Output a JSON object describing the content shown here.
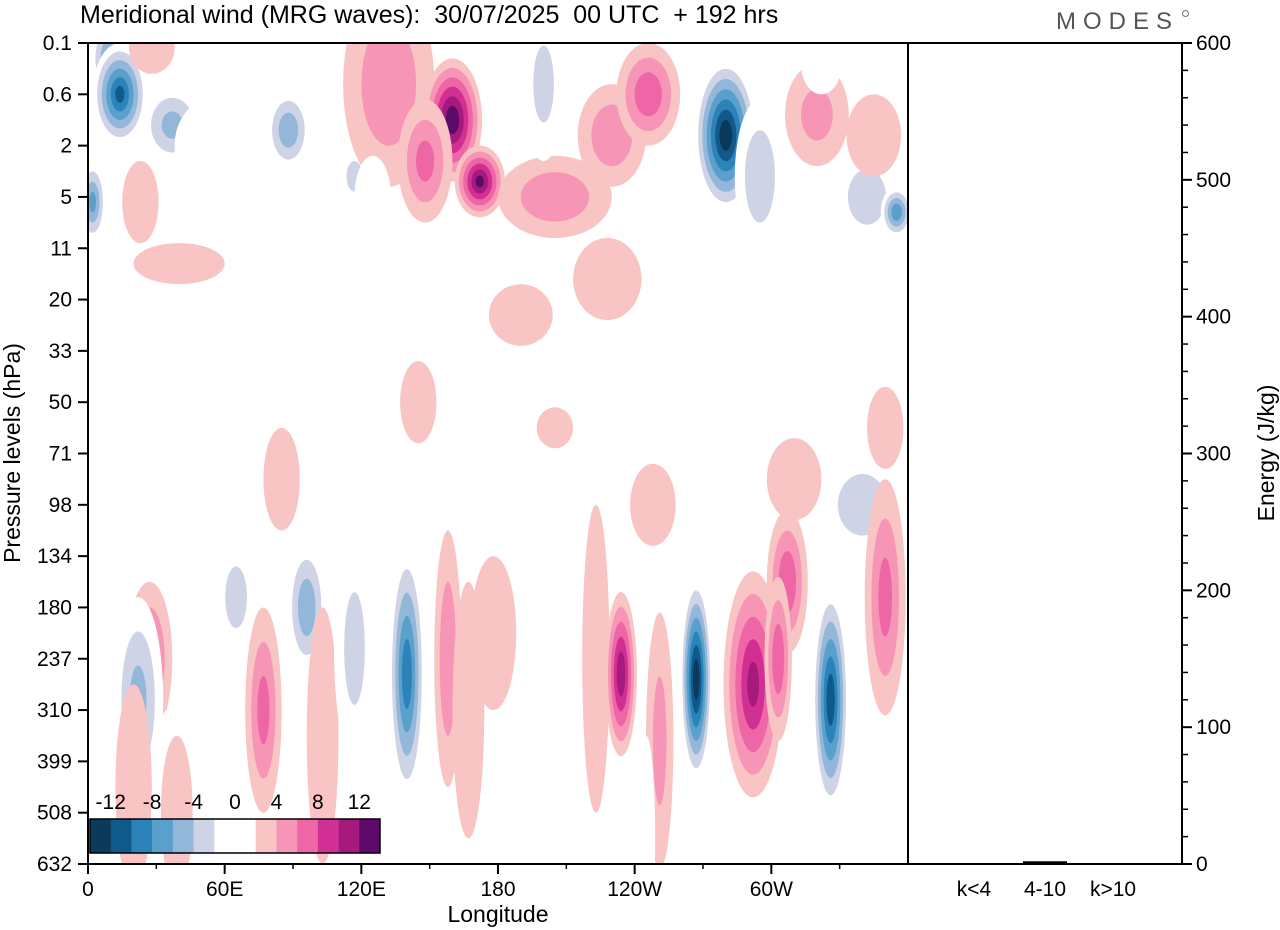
{
  "chart_data": {
    "type": "heatmap",
    "title": "Meridional wind (MRG waves):  30/07/2025  00 UTC  + 192 hrs",
    "brand": "MODES",
    "xlabel": "Longitude",
    "ylabel": "Pressure levels (hPa)",
    "x_ticks": [
      "0",
      "60E",
      "120E",
      "180",
      "120W",
      "60W"
    ],
    "x_tick_degrees": [
      0,
      60,
      120,
      180,
      240,
      300
    ],
    "x_range_degrees": [
      0,
      360
    ],
    "y_ticks": [
      "0.1",
      "0.6",
      "2",
      "5",
      "11",
      "20",
      "33",
      "50",
      "71",
      "98",
      "134",
      "180",
      "237",
      "310",
      "399",
      "508",
      "632"
    ],
    "colorbar": {
      "labels": [
        "-12",
        "-8",
        "-4",
        "0",
        "4",
        "8",
        "12"
      ],
      "levels": [
        -14,
        -12,
        -10,
        -8,
        -6,
        -4,
        -2,
        2,
        4,
        6,
        8,
        10,
        12,
        14
      ],
      "colors": [
        "#0b3a5a",
        "#0f5a8a",
        "#2b83ba",
        "#5aa0cc",
        "#92b7d9",
        "#cfd3e6",
        "#ffffff",
        "#ffffff",
        "#f9c4c4",
        "#f795b6",
        "#ee66a6",
        "#d12f93",
        "#a51a7c",
        "#5e0a6b"
      ]
    },
    "energy_panel": {
      "ylabel": "Energy (J/kg)",
      "ylim": [
        0,
        600
      ],
      "y_ticks": [
        0,
        100,
        200,
        300,
        400,
        500,
        600
      ],
      "categories": [
        "k<4",
        "4-10",
        "k>10"
      ],
      "values": [
        0.5,
        2,
        0.5
      ]
    },
    "blobs": [
      {
        "lon": 10,
        "lev": 0.3,
        "w": 9,
        "h": 0.8,
        "v": -8
      },
      {
        "lon": 14,
        "lev": 1.0,
        "w": 12,
        "h": 1.0,
        "v": -12
      },
      {
        "lon": 37,
        "lev": 1.6,
        "w": 14,
        "h": 0.8,
        "v": -6
      },
      {
        "lon": 54,
        "lev": 2.0,
        "w": 16,
        "h": 0.9,
        "v": -3
      },
      {
        "lon": 88,
        "lev": 1.7,
        "w": 10,
        "h": 0.8,
        "v": -7
      },
      {
        "lon": 2,
        "lev": 3.1,
        "w": 6,
        "h": 0.8,
        "v": -8
      },
      {
        "lon": 117,
        "lev": 2.6,
        "w": 7,
        "h": 0.6,
        "v": -4
      },
      {
        "lon": 28,
        "lev": 0.1,
        "w": 10,
        "h": 0.5,
        "v": 3
      },
      {
        "lon": 132,
        "lev": 0.8,
        "w": 20,
        "h": 2.0,
        "v": 5
      },
      {
        "lon": 160,
        "lev": 1.5,
        "w": 13,
        "h": 1.2,
        "v": 13
      },
      {
        "lon": 172,
        "lev": 2.7,
        "w": 11,
        "h": 0.7,
        "v": 12
      },
      {
        "lon": 148,
        "lev": 2.3,
        "w": 12,
        "h": 1.2,
        "v": 6
      },
      {
        "lon": 205,
        "lev": 3.0,
        "w": 25,
        "h": 0.8,
        "v": 5
      },
      {
        "lon": 230,
        "lev": 1.8,
        "w": 15,
        "h": 1.0,
        "v": 5
      },
      {
        "lon": 246,
        "lev": 1.0,
        "w": 14,
        "h": 1.0,
        "v": 7
      },
      {
        "lon": 200,
        "lev": 0.8,
        "w": 9,
        "h": 1.5,
        "v": -4
      },
      {
        "lon": 280,
        "lev": 1.8,
        "w": 14,
        "h": 1.5,
        "v": -15
      },
      {
        "lon": 295,
        "lev": 2.6,
        "w": 11,
        "h": 1.5,
        "v": -5
      },
      {
        "lon": 342,
        "lev": 3.0,
        "w": 14,
        "h": 0.9,
        "v": -5
      },
      {
        "lon": 355,
        "lev": 3.3,
        "w": 7,
        "h": 0.5,
        "v": -9
      },
      {
        "lon": 320,
        "lev": 1.4,
        "w": 14,
        "h": 1.0,
        "v": 4
      },
      {
        "lon": 345,
        "lev": 1.8,
        "w": 12,
        "h": 0.8,
        "v": 3
      },
      {
        "lon": 322,
        "lev": 0.4,
        "w": 9,
        "h": 0.6,
        "v": -3
      },
      {
        "lon": 125,
        "lev": 3.0,
        "w": 8,
        "h": 0.8,
        "v": -3
      },
      {
        "lon": 95,
        "lev": 4.0,
        "w": 12,
        "h": 0.5,
        "v": -3
      },
      {
        "lon": 40,
        "lev": 4.3,
        "w": 20,
        "h": 0.4,
        "v": 3
      },
      {
        "lon": 23,
        "lev": 3.1,
        "w": 8,
        "h": 0.8,
        "v": 3
      },
      {
        "lon": 228,
        "lev": 4.6,
        "w": 15,
        "h": 0.8,
        "v": 3
      },
      {
        "lon": 190,
        "lev": 5.3,
        "w": 14,
        "h": 0.6,
        "v": 3
      },
      {
        "lon": 20,
        "lev": 7.5,
        "w": 25,
        "h": 1.2,
        "v": -3
      },
      {
        "lon": 48,
        "lev": 9.5,
        "w": 10,
        "h": 1.0,
        "v": -3
      },
      {
        "lon": 65,
        "lev": 10.8,
        "w": 8,
        "h": 1.0,
        "v": -5
      },
      {
        "lon": 85,
        "lev": 8.5,
        "w": 8,
        "h": 1.0,
        "v": 3
      },
      {
        "lon": 110,
        "lev": 8.0,
        "w": 7,
        "h": 0.5,
        "v": -3
      },
      {
        "lon": 145,
        "lev": 7.0,
        "w": 8,
        "h": 0.8,
        "v": 3
      },
      {
        "lon": 205,
        "lev": 7.5,
        "w": 8,
        "h": 0.4,
        "v": 3
      },
      {
        "lon": 250,
        "lev": 7.6,
        "w": 14,
        "h": 0.5,
        "v": -3
      },
      {
        "lon": 248,
        "lev": 9.0,
        "w": 10,
        "h": 0.8,
        "v": 3
      },
      {
        "lon": 310,
        "lev": 8.5,
        "w": 12,
        "h": 0.8,
        "v": 3
      },
      {
        "lon": 340,
        "lev": 9.0,
        "w": 18,
        "h": 1.0,
        "v": -5
      },
      {
        "lon": 350,
        "lev": 7.5,
        "w": 8,
        "h": 0.8,
        "v": 3
      },
      {
        "lon": 307,
        "lev": 10.5,
        "w": 9,
        "h": 1.4,
        "v": 7
      },
      {
        "lon": 27,
        "lev": 12.0,
        "w": 10,
        "h": 1.5,
        "v": 6
      },
      {
        "lon": 22,
        "lev": 12.8,
        "w": 11,
        "h": 2.0,
        "v": -6
      },
      {
        "lon": 35,
        "lev": 14.5,
        "w": 6,
        "h": 1.5,
        "v": -3
      },
      {
        "lon": 39,
        "lev": 15.0,
        "w": 7,
        "h": 1.5,
        "v": 3
      },
      {
        "lon": 20,
        "lev": 14.5,
        "w": 8,
        "h": 2.0,
        "v": 3
      },
      {
        "lon": 77,
        "lev": 13.0,
        "w": 8,
        "h": 2.0,
        "v": 6
      },
      {
        "lon": 96,
        "lev": 11.0,
        "w": 9,
        "h": 1.3,
        "v": -7
      },
      {
        "lon": 103,
        "lev": 13.5,
        "w": 7,
        "h": 2.5,
        "v": 3
      },
      {
        "lon": 117,
        "lev": 11.8,
        "w": 9,
        "h": 2.2,
        "v": -4
      },
      {
        "lon": 140,
        "lev": 12.3,
        "w": 8,
        "h": 2.5,
        "v": -11
      },
      {
        "lon": 158,
        "lev": 12.0,
        "w": 6,
        "h": 2.5,
        "v": 5
      },
      {
        "lon": 167,
        "lev": 13.0,
        "w": 7,
        "h": 2.5,
        "v": 3
      },
      {
        "lon": 178,
        "lev": 11.5,
        "w": 10,
        "h": 1.5,
        "v": 3
      },
      {
        "lon": 223,
        "lev": 12.0,
        "w": 6,
        "h": 3.0,
        "v": 2.5
      },
      {
        "lon": 234,
        "lev": 12.3,
        "w": 7,
        "h": 1.6,
        "v": 11
      },
      {
        "lon": 251,
        "lev": 13.6,
        "w": 6,
        "h": 2.5,
        "v": 4
      },
      {
        "lon": 267,
        "lev": 12.4,
        "w": 7,
        "h": 2.0,
        "v": -15
      },
      {
        "lon": 292,
        "lev": 12.5,
        "w": 13,
        "h": 2.2,
        "v": 10
      },
      {
        "lon": 303,
        "lev": 12.0,
        "w": 6,
        "h": 1.6,
        "v": 7
      },
      {
        "lon": 326,
        "lev": 12.8,
        "w": 8,
        "h": 2.2,
        "v": -13
      },
      {
        "lon": 350,
        "lev": 10.8,
        "w": 9,
        "h": 2.3,
        "v": 6
      },
      {
        "lon": 212,
        "lev": 13.0,
        "w": 4,
        "h": 2.5,
        "v": -3
      },
      {
        "lon": 245,
        "lev": 15.5,
        "w": 4,
        "h": 2.0,
        "v": -3
      },
      {
        "lon": 190,
        "lev": 15.0,
        "w": 6,
        "h": 2.5,
        "v": -3
      }
    ]
  }
}
